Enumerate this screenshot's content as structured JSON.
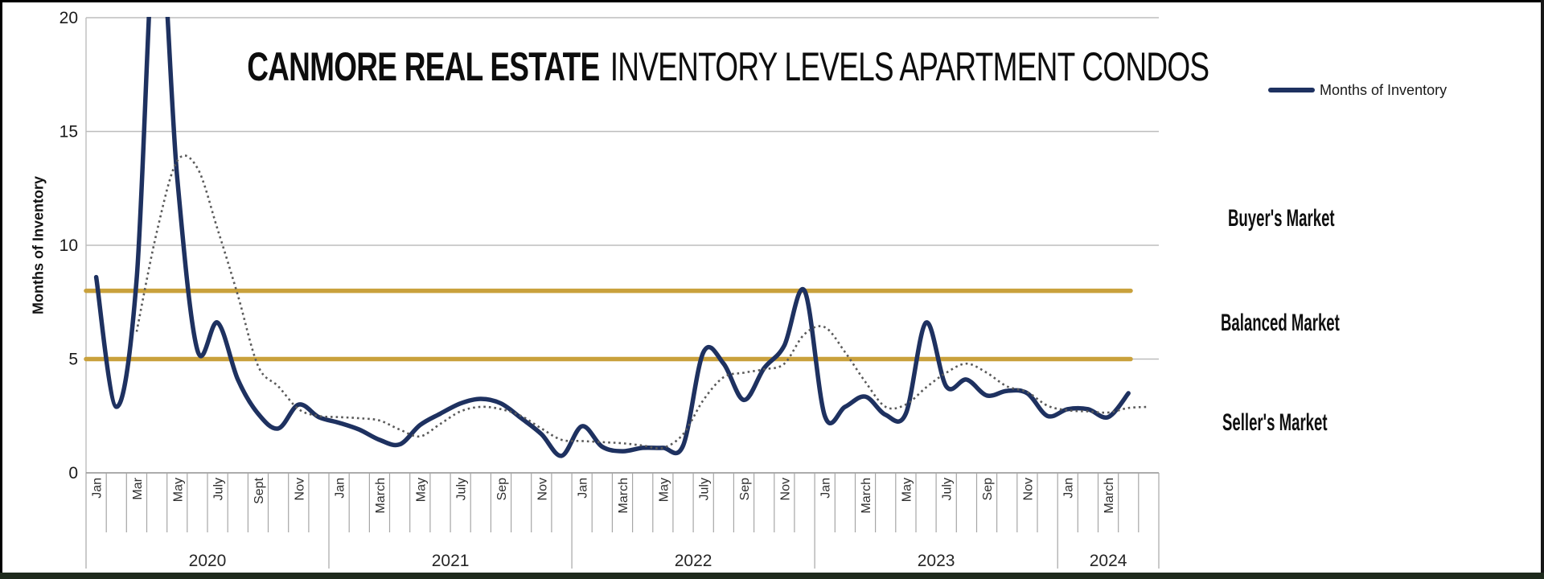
{
  "title": {
    "brand": "CANMORE REAL ESTATE",
    "rest": "INVENTORY LEVELS APARTMENT CONDOS"
  },
  "y_axis": {
    "title": "Months of Inventory",
    "ticks": [
      0,
      5,
      10,
      15,
      20
    ],
    "max": 20
  },
  "legend": {
    "label": "Months of Inventory"
  },
  "market_zones": {
    "buyers": "Buyer's Market",
    "balanced": "Balanced Market",
    "sellers": "Seller's Market"
  },
  "colors": {
    "navy_line": "#1e3160",
    "gold_line": "#c9a13c",
    "dotted_line": "#5a5a5a",
    "gridline": "#bdbdbd",
    "axis": "#909090",
    "frame_bottom": "#1e2a1c"
  },
  "chart_data": {
    "type": "line",
    "title": "CANMORE REAL ESTATE INVENTORY LEVELS APARTMENT CONDOS",
    "xlabel": "",
    "ylabel": "Months of Inventory",
    "ylim": [
      0,
      20
    ],
    "grid": "horizontal",
    "legend_position": "top-right",
    "years": [
      {
        "label": "2020",
        "months": 12
      },
      {
        "label": "2021",
        "months": 12
      },
      {
        "label": "2022",
        "months": 12
      },
      {
        "label": "2023",
        "months": 12
      },
      {
        "label": "2024",
        "months": 5
      }
    ],
    "month_tick_labels": [
      "Jan",
      "",
      "Mar",
      "",
      "May",
      "",
      "July",
      "",
      "Sept",
      "",
      "Nov",
      "",
      "Jan",
      "",
      "March",
      "",
      "May",
      "",
      "July",
      "",
      "Sep",
      "",
      "Nov",
      "",
      "Jan",
      "",
      "March",
      "",
      "May",
      "",
      "July",
      "",
      "Sep",
      "",
      "Nov",
      "",
      "Jan",
      "",
      "March",
      "",
      "May",
      "",
      "July",
      "",
      "Sep",
      "",
      "Nov",
      "",
      "Jan",
      "",
      "March",
      "",
      ""
    ],
    "series": [
      {
        "name": "Months of Inventory",
        "style": "solid",
        "color": "#1e3160",
        "note": "April 2020 value exceeds axis max and is clipped at 20",
        "values": [
          8.6,
          2.9,
          8.5,
          25,
          13,
          5.4,
          6.6,
          4.1,
          2.6,
          1.95,
          3.0,
          2.45,
          2.2,
          1.9,
          1.45,
          1.25,
          2.1,
          2.6,
          3.05,
          3.25,
          3.05,
          2.4,
          1.7,
          0.75,
          2.05,
          1.15,
          0.95,
          1.1,
          1.1,
          1.2,
          5.3,
          4.8,
          3.2,
          4.6,
          5.6,
          8.0,
          2.5,
          2.9,
          3.35,
          2.55,
          2.6,
          6.6,
          3.8,
          4.1,
          3.4,
          3.6,
          3.5,
          2.5,
          2.8,
          2.8,
          2.45,
          3.5,
          null
        ]
      },
      {
        "name": "trend-dotted",
        "style": "dotted",
        "color": "#5a5a5a",
        "values": [
          null,
          null,
          6.2,
          10.6,
          13.7,
          13.4,
          10.7,
          7.8,
          4.7,
          3.8,
          2.8,
          2.5,
          2.45,
          2.4,
          2.3,
          1.9,
          1.6,
          2.15,
          2.7,
          2.9,
          2.8,
          2.5,
          1.95,
          1.45,
          1.4,
          1.35,
          1.3,
          1.2,
          1.1,
          1.7,
          3.2,
          4.2,
          4.4,
          4.55,
          4.8,
          6.1,
          6.4,
          5.3,
          4.0,
          2.9,
          3.0,
          3.75,
          4.4,
          4.8,
          4.4,
          3.8,
          3.55,
          2.95,
          2.75,
          2.7,
          2.65,
          2.85,
          2.9
        ]
      }
    ],
    "reference_lines": [
      {
        "value": 8,
        "color": "#c9a13c",
        "meaning": "buyers-balanced threshold"
      },
      {
        "value": 5,
        "color": "#c9a13c",
        "meaning": "balanced-sellers threshold"
      }
    ]
  }
}
